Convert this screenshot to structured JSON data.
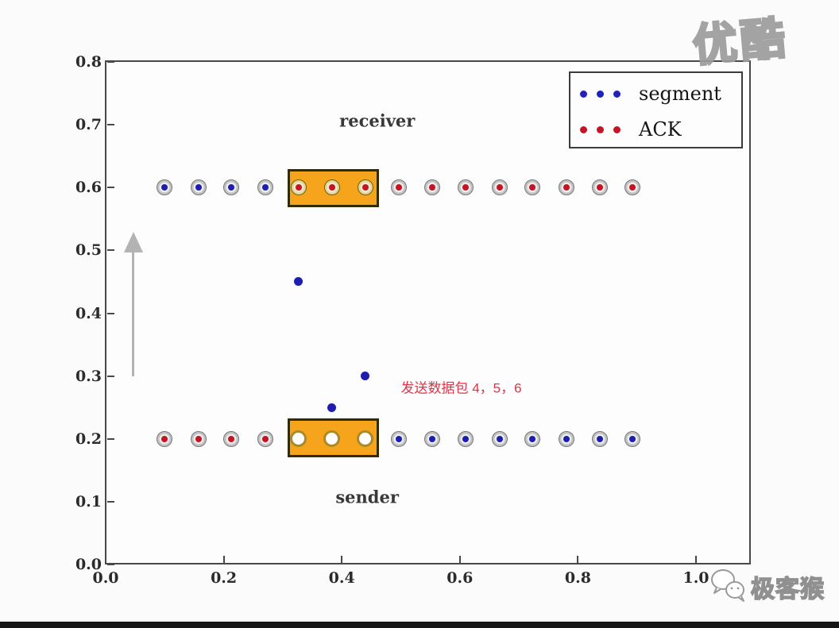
{
  "watermarks": {
    "youku": "优酷",
    "geekmonkey": "极客猴"
  },
  "chart_data": {
    "type": "scatter",
    "title": "",
    "xlabel": "",
    "ylabel": "",
    "xlim": [
      0.0,
      1.09
    ],
    "ylim": [
      0.0,
      0.8
    ],
    "grid": false,
    "x_tick_labels": [
      "0.0",
      "0.2",
      "0.4",
      "0.6",
      "0.8",
      "1.0"
    ],
    "x_tick_values": [
      0.0,
      0.2,
      0.4,
      0.6,
      0.8,
      1.0
    ],
    "y_tick_labels": [
      "0.0",
      "0.1",
      "0.2",
      "0.3",
      "0.4",
      "0.5",
      "0.6",
      "0.7",
      "0.8"
    ],
    "y_tick_values": [
      0.0,
      0.1,
      0.2,
      0.3,
      0.4,
      0.5,
      0.6,
      0.7,
      0.8
    ],
    "colors": {
      "segment": "#1e1eae",
      "ack": "#c41425",
      "ring": "#c2c2c2",
      "window_fill": "#f7a41d",
      "window_border": "#332b00",
      "arrow": "#b3b3b3",
      "annotation_red": "#e03448"
    },
    "legend": {
      "position": "upper right",
      "entries": [
        {
          "label": "segment",
          "color": "#2121bb"
        },
        {
          "label": "ACK",
          "color": "#c41425"
        }
      ]
    },
    "annotations": [
      {
        "text": "receiver",
        "x": 0.46,
        "y": 0.707,
        "anchor": "center",
        "style": "serif"
      },
      {
        "text": "sender",
        "x": 0.443,
        "y": 0.107,
        "anchor": "center",
        "style": "serif"
      },
      {
        "text": "发送数据包 4，5，6",
        "x": 0.5,
        "y": 0.283,
        "anchor": "left",
        "style": "red"
      }
    ],
    "windows": [
      {
        "name": "receiver-window",
        "x0": 0.308,
        "x1": 0.463,
        "y0": 0.569,
        "y1": 0.63
      },
      {
        "name": "sender-window",
        "x0": 0.308,
        "x1": 0.463,
        "y0": 0.17,
        "y1": 0.233
      }
    ],
    "arrow": {
      "x": 0.047,
      "y_from": 0.3,
      "y_to": 0.53
    },
    "series": [
      {
        "name": "receiver-row",
        "y": 0.6,
        "points": [
          {
            "x": 0.1,
            "kind": "segment"
          },
          {
            "x": 0.157,
            "kind": "segment"
          },
          {
            "x": 0.213,
            "kind": "segment"
          },
          {
            "x": 0.27,
            "kind": "segment"
          },
          {
            "x": 0.327,
            "kind": "ack",
            "in_window": true
          },
          {
            "x": 0.383,
            "kind": "ack",
            "in_window": true
          },
          {
            "x": 0.44,
            "kind": "ack",
            "in_window": true
          },
          {
            "x": 0.497,
            "kind": "ack"
          },
          {
            "x": 0.553,
            "kind": "ack"
          },
          {
            "x": 0.61,
            "kind": "ack"
          },
          {
            "x": 0.667,
            "kind": "ack"
          },
          {
            "x": 0.723,
            "kind": "ack"
          },
          {
            "x": 0.78,
            "kind": "ack"
          },
          {
            "x": 0.837,
            "kind": "ack"
          },
          {
            "x": 0.893,
            "kind": "ack"
          }
        ]
      },
      {
        "name": "sender-row",
        "y": 0.2,
        "points": [
          {
            "x": 0.1,
            "kind": "ack"
          },
          {
            "x": 0.157,
            "kind": "ack"
          },
          {
            "x": 0.213,
            "kind": "ack"
          },
          {
            "x": 0.27,
            "kind": "ack"
          },
          {
            "x": 0.327,
            "kind": "open",
            "in_window": true
          },
          {
            "x": 0.383,
            "kind": "open",
            "in_window": true
          },
          {
            "x": 0.44,
            "kind": "open",
            "in_window": true
          },
          {
            "x": 0.497,
            "kind": "segment"
          },
          {
            "x": 0.553,
            "kind": "segment"
          },
          {
            "x": 0.61,
            "kind": "segment"
          },
          {
            "x": 0.667,
            "kind": "segment"
          },
          {
            "x": 0.723,
            "kind": "segment"
          },
          {
            "x": 0.78,
            "kind": "segment"
          },
          {
            "x": 0.837,
            "kind": "segment"
          },
          {
            "x": 0.893,
            "kind": "segment"
          }
        ]
      },
      {
        "name": "segments-in-flight",
        "kind": "segment-plain",
        "points": [
          {
            "x": 0.327,
            "y": 0.45
          },
          {
            "x": 0.383,
            "y": 0.25
          },
          {
            "x": 0.44,
            "y": 0.3
          }
        ]
      }
    ]
  }
}
